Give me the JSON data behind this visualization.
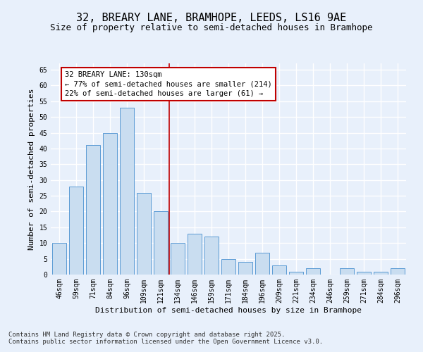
{
  "title": "32, BREARY LANE, BRAMHOPE, LEEDS, LS16 9AE",
  "subtitle": "Size of property relative to semi-detached houses in Bramhope",
  "xlabel": "Distribution of semi-detached houses by size in Bramhope",
  "ylabel": "Number of semi-detached properties",
  "categories": [
    "46sqm",
    "59sqm",
    "71sqm",
    "84sqm",
    "96sqm",
    "109sqm",
    "121sqm",
    "134sqm",
    "146sqm",
    "159sqm",
    "171sqm",
    "184sqm",
    "196sqm",
    "209sqm",
    "221sqm",
    "234sqm",
    "246sqm",
    "259sqm",
    "271sqm",
    "284sqm",
    "296sqm"
  ],
  "values": [
    10,
    28,
    41,
    45,
    53,
    26,
    20,
    10,
    13,
    12,
    5,
    4,
    7,
    3,
    1,
    2,
    0,
    2,
    1,
    1,
    2
  ],
  "bar_color": "#c9ddf0",
  "bar_edge_color": "#5b9bd5",
  "background_color": "#e8f0fb",
  "grid_color": "#ffffff",
  "vline_color": "#c00000",
  "annotation_text": "32 BREARY LANE: 130sqm\n← 77% of semi-detached houses are smaller (214)\n22% of semi-detached houses are larger (61) →",
  "annotation_box_color": "#ffffff",
  "annotation_box_edge_color": "#c00000",
  "ylim": [
    0,
    67
  ],
  "yticks": [
    0,
    5,
    10,
    15,
    20,
    25,
    30,
    35,
    40,
    45,
    50,
    55,
    60,
    65
  ],
  "footnote": "Contains HM Land Registry data © Crown copyright and database right 2025.\nContains public sector information licensed under the Open Government Licence v3.0.",
  "title_fontsize": 11,
  "subtitle_fontsize": 9,
  "label_fontsize": 8,
  "tick_fontsize": 7,
  "annotation_fontsize": 7.5,
  "footnote_fontsize": 6.5
}
